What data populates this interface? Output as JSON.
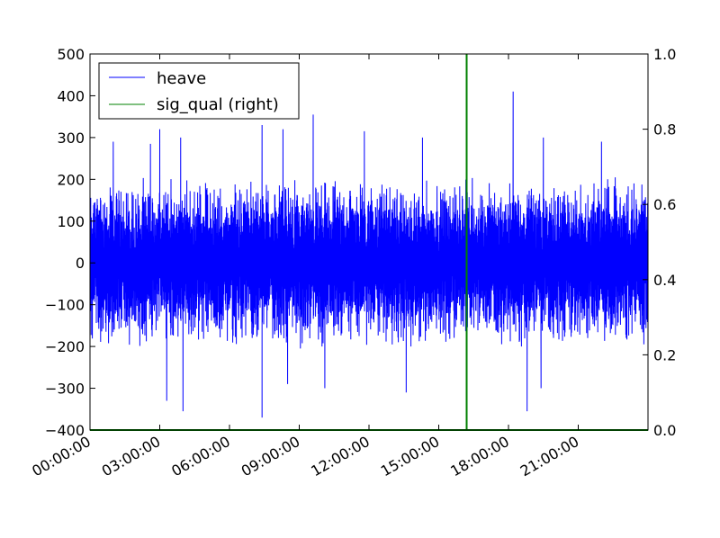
{
  "chart_data": {
    "type": "line",
    "x_tick_labels": [
      "00:00:00",
      "03:00:00",
      "06:00:00",
      "09:00:00",
      "12:00:00",
      "15:00:00",
      "18:00:00",
      "21:00:00"
    ],
    "x_tick_hours": [
      0,
      3,
      6,
      9,
      12,
      15,
      18,
      21
    ],
    "x_range_hours": [
      0,
      24
    ],
    "y_left": {
      "ticks": [
        500,
        400,
        300,
        200,
        100,
        0,
        -100,
        -200,
        -300,
        -400
      ],
      "tick_labels": [
        "500",
        "400",
        "300",
        "200",
        "100",
        "0",
        "−100",
        "−200",
        "−300",
        "−400"
      ],
      "range": [
        -400,
        500
      ]
    },
    "y_right": {
      "ticks": [
        1.0,
        0.8,
        0.6,
        0.4,
        0.2,
        0.0
      ],
      "tick_labels": [
        "1.0",
        "0.8",
        "0.6",
        "0.4",
        "0.2",
        "0.0"
      ],
      "range": [
        0.0,
        1.0
      ]
    },
    "series": [
      {
        "name": "heave",
        "axis": "left",
        "color": "#0000ff",
        "description_points": {
          "typical_range": [
            -200,
            200
          ],
          "peaks_hours": [
            1.0,
            2.6,
            3.0,
            3.9,
            7.4,
            8.3,
            9.6,
            11.8,
            14.3,
            18.2,
            19.5,
            22.0
          ],
          "peaks_values": [
            290,
            285,
            320,
            300,
            330,
            320,
            355,
            315,
            300,
            410,
            300,
            290
          ],
          "troughs_hours": [
            3.3,
            4.0,
            7.4,
            8.5,
            10.1,
            13.6,
            16.2,
            18.8,
            19.4
          ],
          "troughs_values": [
            -330,
            -355,
            -370,
            -290,
            -300,
            -310,
            -355,
            -355,
            -300
          ]
        }
      },
      {
        "name": "sig_qual (right)",
        "axis": "right",
        "color": "#008000",
        "segments": [
          {
            "x_hours": [
              0,
              16.2
            ],
            "y": 0.0
          },
          {
            "x_hours": [
              16.2,
              16.2
            ],
            "y": [
              0.0,
              1.0
            ]
          },
          {
            "x_hours": [
              16.2,
              24
            ],
            "y": 0.0
          }
        ]
      }
    ],
    "legend": {
      "placement": "top-left",
      "entries": [
        "heave",
        "sig_qual (right)"
      ]
    },
    "grid": false
  }
}
